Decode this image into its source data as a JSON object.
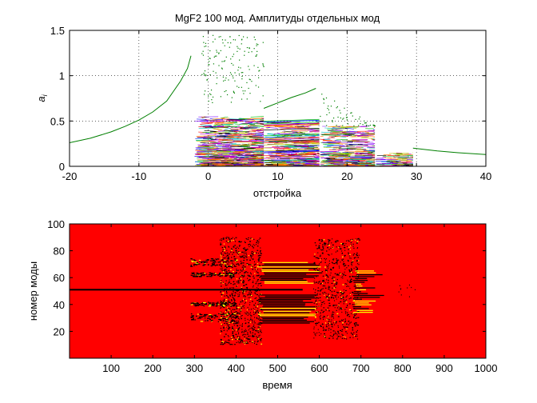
{
  "chart_data": [
    {
      "type": "line",
      "title": "MgF2 100 мод. Амплитуды отдельных мод",
      "xlabel": "отстройка",
      "ylabel": "a_i",
      "xlim": [
        -20,
        40
      ],
      "ylim": [
        0,
        1.5
      ],
      "xticks": [
        -20,
        -10,
        0,
        10,
        20,
        30,
        40
      ],
      "yticks": [
        0,
        0.5,
        1,
        1.5
      ],
      "grid": true,
      "series": [
        {
          "color": "#007f00",
          "x": [
            -20,
            -17,
            -14,
            -12,
            -10,
            -8,
            -6,
            -4,
            -3,
            -2.5
          ],
          "y": [
            0.26,
            0.31,
            0.38,
            0.44,
            0.51,
            0.6,
            0.72,
            0.94,
            1.08,
            1.22
          ]
        },
        {
          "color": "#007f00",
          "x": [
            8,
            10,
            12,
            14,
            15.5
          ],
          "y": [
            0.64,
            0.7,
            0.76,
            0.81,
            0.86
          ]
        },
        {
          "color": "#007f00",
          "x": [
            29.5,
            33,
            36,
            40
          ],
          "y": [
            0.2,
            0.17,
            0.15,
            0.13
          ]
        },
        {
          "color": "#007f00",
          "x": [
            -20,
            40
          ],
          "y": [
            0,
            0
          ]
        }
      ]
    },
    {
      "type": "heatmap",
      "xlabel": "время",
      "ylabel": "номер моды",
      "xlim": [
        0,
        1000
      ],
      "ylim": [
        0,
        100
      ],
      "xticks": [
        100,
        200,
        300,
        400,
        500,
        600,
        700,
        800,
        900,
        1000
      ],
      "yticks": [
        20,
        40,
        60,
        80,
        100
      ],
      "background_color": "#ff0000",
      "active_color": "#000000",
      "highlight_color": "#ffff00",
      "central_mode": 51
    }
  ]
}
